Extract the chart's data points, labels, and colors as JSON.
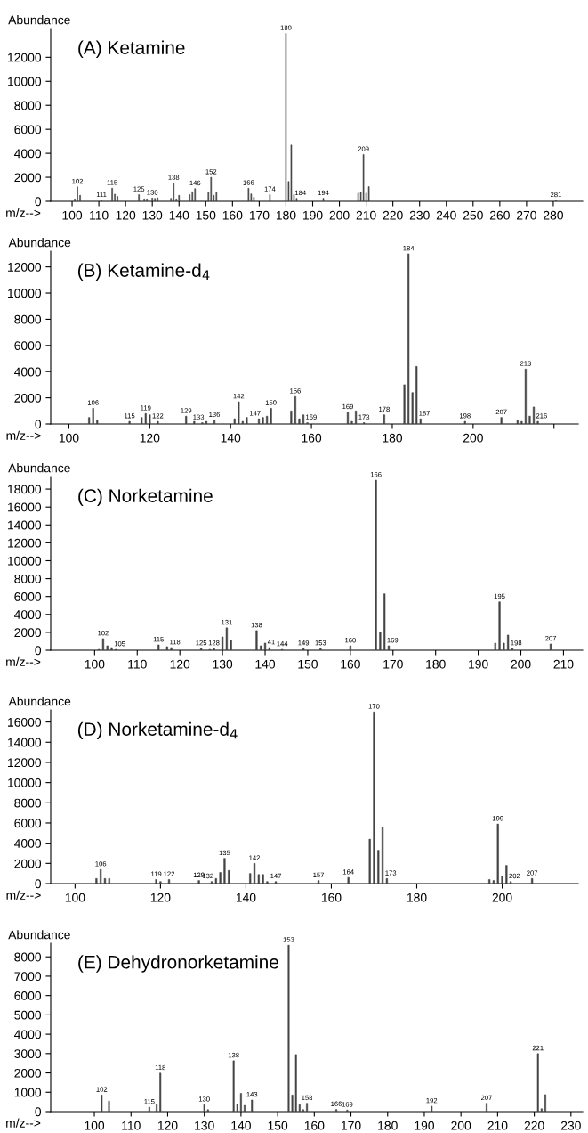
{
  "chart_data": [
    {
      "type": "bar",
      "title": "(A) Ketamine",
      "xlabel": "m/z-->",
      "ylabel": "Abundance",
      "color": "#444444",
      "x": [
        101,
        102,
        103,
        111,
        115,
        116,
        117,
        125,
        127,
        128,
        130,
        131,
        132,
        137,
        138,
        139,
        140,
        144,
        145,
        146,
        151,
        152,
        153,
        154,
        166,
        167,
        168,
        174,
        180,
        181,
        182,
        183,
        184,
        194,
        207,
        208,
        209,
        210,
        211,
        281
      ],
      "values": [
        200,
        1200,
        500,
        100,
        1100,
        600,
        400,
        560,
        200,
        200,
        280,
        250,
        300,
        250,
        1530,
        200,
        500,
        560,
        800,
        1060,
        750,
        2000,
        500,
        780,
        1090,
        620,
        340,
        560,
        14000,
        1650,
        4690,
        560,
        250,
        250,
        690,
        780,
        3900,
        690,
        1220,
        90
      ],
      "annotations": [
        {
          "text": "102",
          "x": 102,
          "y": 1200
        },
        {
          "text": "111",
          "x": 111,
          "y": 100
        },
        {
          "text": "115",
          "x": 115,
          "y": 1100
        },
        {
          "text": "125",
          "x": 125,
          "y": 560
        },
        {
          "text": "130",
          "x": 130,
          "y": 280
        },
        {
          "text": "138",
          "x": 138,
          "y": 1530
        },
        {
          "text": "146",
          "x": 146,
          "y": 1060
        },
        {
          "text": "152",
          "x": 152,
          "y": 2000
        },
        {
          "text": "166",
          "x": 166,
          "y": 1090
        },
        {
          "text": "174",
          "x": 174,
          "y": 560
        },
        {
          "text": "180",
          "x": 180,
          "y": 14000
        },
        {
          "text": "184",
          "x": 184,
          "y": 250
        },
        {
          "text": "194",
          "x": 194,
          "y": 250
        },
        {
          "text": "209",
          "x": 209,
          "y": 3900
        },
        {
          "text": "281",
          "x": 281,
          "y": 90
        }
      ],
      "xlim": [
        92,
        291
      ],
      "xticks": [
        100,
        110,
        120,
        130,
        140,
        150,
        160,
        170,
        180,
        190,
        200,
        210,
        220,
        230,
        240,
        250,
        260,
        270,
        280
      ],
      "ylim": [
        0,
        14400
      ],
      "yticks": [
        0,
        2000,
        4000,
        6000,
        8000,
        10000,
        12000
      ]
    },
    {
      "type": "bar",
      "title": "(B) Ketamine-d$_{4}$",
      "xlabel": "m/z-->",
      "ylabel": "Abundance",
      "color": "#444444",
      "x": [
        105,
        106,
        107,
        115,
        118,
        119,
        120,
        122,
        129,
        131,
        133,
        134,
        136,
        141,
        142,
        143,
        144,
        147,
        148,
        149,
        150,
        155,
        156,
        157,
        158,
        159,
        169,
        170,
        171,
        173,
        178,
        183,
        184,
        185,
        186,
        187,
        198,
        207,
        211,
        212,
        213,
        214,
        215,
        216
      ],
      "values": [
        500,
        1200,
        300,
        200,
        500,
        800,
        700,
        200,
        600,
        200,
        100,
        200,
        300,
        400,
        1700,
        200,
        500,
        400,
        500,
        600,
        1200,
        1000,
        2100,
        400,
        700,
        100,
        900,
        200,
        1000,
        100,
        700,
        3000,
        13000,
        2400,
        4400,
        400,
        200,
        500,
        300,
        200,
        4200,
        600,
        1300,
        200
      ],
      "annotations": [
        {
          "text": "106",
          "x": 106,
          "y": 1200
        },
        {
          "text": "115",
          "x": 115,
          "y": 200
        },
        {
          "text": "119",
          "x": 119,
          "y": 800
        },
        {
          "text": "122",
          "x": 122,
          "y": 200
        },
        {
          "text": "129",
          "x": 129,
          "y": 600
        },
        {
          "text": "133",
          "x": 133,
          "y": 100
        },
        {
          "text": "136",
          "x": 136,
          "y": 300
        },
        {
          "text": "142",
          "x": 142,
          "y": 1700
        },
        {
          "text": "147",
          "x": 147,
          "y": 400
        },
        {
          "text": "150",
          "x": 150,
          "y": 1200
        },
        {
          "text": "156",
          "x": 156,
          "y": 2100
        },
        {
          "text": "159",
          "x": 159,
          "y": 100
        },
        {
          "text": "169",
          "x": 169,
          "y": 900
        },
        {
          "text": "173",
          "x": 173,
          "y": 100
        },
        {
          "text": "178",
          "x": 178,
          "y": 700
        },
        {
          "text": "184",
          "x": 184,
          "y": 13000
        },
        {
          "text": "187",
          "x": 187,
          "y": 400
        },
        {
          "text": "198",
          "x": 198,
          "y": 200
        },
        {
          "text": "207",
          "x": 207,
          "y": 500
        },
        {
          "text": "213",
          "x": 213,
          "y": 4200
        },
        {
          "text": "216",
          "x": 216,
          "y": 200
        }
      ],
      "xlim": [
        95.5,
        226
      ],
      "xticks": [
        100,
        120,
        140,
        160,
        180,
        200,
        {
          "value": 220,
          "label": null
        }
      ],
      "ylim": [
        0,
        13200
      ],
      "yticks": [
        0,
        2000,
        4000,
        6000,
        8000,
        10000,
        12000
      ]
    },
    {
      "type": "bar",
      "title": "(C) Norketamine",
      "xlabel": "m/z-->",
      "ylabel": "Abundance",
      "color": "#444444",
      "x": [
        101,
        102,
        103,
        104,
        105,
        115,
        117,
        118,
        125,
        127,
        128,
        130,
        131,
        132,
        138,
        139,
        140,
        141,
        144,
        149,
        153,
        160,
        166,
        167,
        168,
        169,
        194,
        195,
        196,
        197,
        198,
        207
      ],
      "values": [
        100,
        1300,
        500,
        300,
        100,
        600,
        400,
        300,
        200,
        100,
        200,
        1500,
        2500,
        1100,
        2200,
        500,
        800,
        300,
        100,
        200,
        200,
        500,
        19000,
        2000,
        6300,
        500,
        800,
        5400,
        800,
        1700,
        200,
        700
      ],
      "annotations": [
        {
          "text": "102",
          "x": 102,
          "y": 1300
        },
        {
          "text": "105",
          "x": 105,
          "y": 100
        },
        {
          "text": "115",
          "x": 115,
          "y": 600
        },
        {
          "text": "118",
          "x": 118,
          "y": 300
        },
        {
          "text": "125",
          "x": 125,
          "y": 200
        },
        {
          "text": "128",
          "x": 128,
          "y": 200
        },
        {
          "text": "131",
          "x": 131,
          "y": 2500
        },
        {
          "text": "138",
          "x": 138,
          "y": 2200
        },
        {
          "text": "41",
          "x": 141,
          "y": 300
        },
        {
          "text": "144",
          "x": 144,
          "y": 100
        },
        {
          "text": "149",
          "x": 149,
          "y": 200
        },
        {
          "text": "153",
          "x": 153,
          "y": 200
        },
        {
          "text": "160",
          "x": 160,
          "y": 500
        },
        {
          "text": "166",
          "x": 166,
          "y": 19000
        },
        {
          "text": "169",
          "x": 169,
          "y": 500
        },
        {
          "text": "195",
          "x": 195,
          "y": 5400
        },
        {
          "text": "198",
          "x": 198,
          "y": 200
        },
        {
          "text": "207",
          "x": 207,
          "y": 700
        }
      ],
      "xlim": [
        89.7,
        214.5
      ],
      "xticks": [
        100,
        110,
        120,
        130,
        140,
        150,
        160,
        170,
        180,
        190,
        200,
        210
      ],
      "ylim": [
        0,
        19400
      ],
      "yticks": [
        0,
        2000,
        4000,
        6000,
        8000,
        10000,
        12000,
        14000,
        16000,
        18000
      ]
    },
    {
      "type": "bar",
      "title": "(D) Norketamine-d$_{4}$",
      "xlabel": "m/z-->",
      "ylabel": "Abundance",
      "color": "#444444",
      "x": [
        105,
        106,
        107,
        108,
        119,
        120,
        122,
        129,
        132,
        133,
        134,
        135,
        136,
        141,
        142,
        143,
        144,
        145,
        147,
        157,
        164,
        169,
        170,
        171,
        172,
        173,
        197,
        198,
        199,
        200,
        201,
        202,
        207
      ],
      "values": [
        500,
        1400,
        500,
        500,
        400,
        200,
        400,
        300,
        200,
        500,
        1100,
        2500,
        1300,
        1000,
        2000,
        900,
        900,
        200,
        200,
        300,
        600,
        4400,
        17000,
        3300,
        5600,
        500,
        400,
        300,
        5900,
        700,
        1800,
        200,
        500
      ],
      "annotations": [
        {
          "text": "106",
          "x": 106,
          "y": 1400
        },
        {
          "text": "119",
          "x": 119,
          "y": 400
        },
        {
          "text": "122",
          "x": 122,
          "y": 400
        },
        {
          "text": "129",
          "x": 129,
          "y": 300
        },
        {
          "text": "132",
          "x": 132,
          "y": 200
        },
        {
          "text": "135",
          "x": 135,
          "y": 2500
        },
        {
          "text": "142",
          "x": 142,
          "y": 2000
        },
        {
          "text": "147",
          "x": 147,
          "y": 200
        },
        {
          "text": "157",
          "x": 157,
          "y": 300
        },
        {
          "text": "164",
          "x": 164,
          "y": 600
        },
        {
          "text": "170",
          "x": 170,
          "y": 17000
        },
        {
          "text": "173",
          "x": 173,
          "y": 500
        },
        {
          "text": "199",
          "x": 199,
          "y": 5900
        },
        {
          "text": "202",
          "x": 202,
          "y": 200
        },
        {
          "text": "207",
          "x": 207,
          "y": 500
        }
      ],
      "xlim": [
        94.3,
        217.8
      ],
      "xticks": [
        100,
        120,
        140,
        160,
        180,
        200
      ],
      "ylim": [
        0,
        17200
      ],
      "yticks": [
        0,
        2000,
        4000,
        6000,
        8000,
        10000,
        12000,
        14000,
        16000
      ]
    },
    {
      "type": "bar",
      "title": "(E) Dehydronorketamine",
      "xlabel": "m/z-->",
      "ylabel": "Abundance",
      "color": "#444444",
      "x": [
        102,
        104,
        115,
        117,
        118,
        130,
        131,
        138,
        139,
        140,
        141,
        143,
        153,
        154,
        155,
        156,
        157,
        158,
        166,
        169,
        192,
        207,
        221,
        222,
        223
      ],
      "values": [
        860,
        540,
        230,
        360,
        1990,
        360,
        100,
        2630,
        390,
        940,
        320,
        600,
        8600,
        860,
        2950,
        360,
        100,
        430,
        110,
        80,
        280,
        430,
        3000,
        150,
        880
      ],
      "annotations": [
        {
          "text": "102",
          "x": 102,
          "y": 860
        },
        {
          "text": "115",
          "x": 115,
          "y": 230
        },
        {
          "text": "118",
          "x": 118,
          "y": 1990
        },
        {
          "text": "130",
          "x": 130,
          "y": 360
        },
        {
          "text": "138",
          "x": 138,
          "y": 2630
        },
        {
          "text": "143",
          "x": 143,
          "y": 600
        },
        {
          "text": "153",
          "x": 153,
          "y": 8600
        },
        {
          "text": "158",
          "x": 158,
          "y": 430
        },
        {
          "text": "166",
          "x": 166,
          "y": 110
        },
        {
          "text": "169",
          "x": 169,
          "y": 80
        },
        {
          "text": "192",
          "x": 192,
          "y": 280
        },
        {
          "text": "207",
          "x": 207,
          "y": 430
        },
        {
          "text": "221",
          "x": 221,
          "y": 3000
        }
      ],
      "xlim": [
        88.1,
        233.2
      ],
      "xticks": [
        100,
        110,
        120,
        130,
        140,
        150,
        160,
        170,
        180,
        190,
        200,
        210,
        220,
        230
      ],
      "ylim": [
        0,
        8700
      ],
      "yticks": [
        0,
        1000,
        2000,
        3000,
        4000,
        5000,
        6000,
        7000,
        8000
      ]
    }
  ]
}
